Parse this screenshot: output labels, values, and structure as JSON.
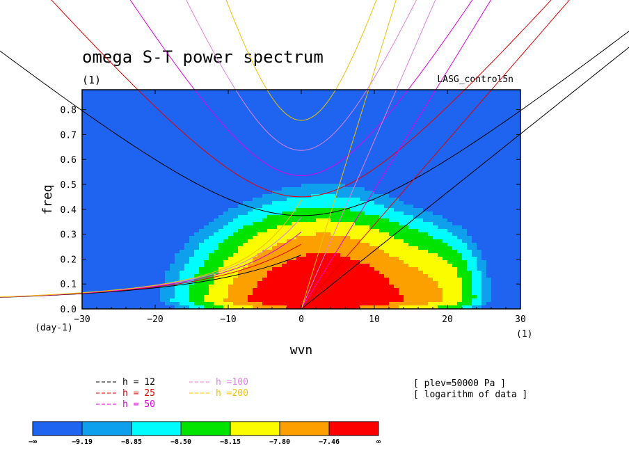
{
  "chart_data": {
    "type": "heatmap",
    "title": "omega S-T power spectrum",
    "subtitle": "(1)",
    "model": "LASG_control5n",
    "xlabel": "wvn",
    "ylabel": "freq",
    "x_unit": "(1)",
    "y_unit": "(day-1)",
    "xlim": [
      -30,
      30
    ],
    "ylim": [
      0,
      0.88
    ],
    "x_ticks": [
      "−30",
      "−20",
      "−10",
      "0",
      "10",
      "20",
      "30"
    ],
    "x_tick_values": [
      -30,
      -20,
      -10,
      0,
      10,
      20,
      30
    ],
    "y_ticks": [
      "0.0",
      "0.1",
      "0.2",
      "0.3",
      "0.4",
      "0.5",
      "0.6",
      "0.7",
      "0.8"
    ],
    "y_tick_values": [
      0,
      0.1,
      0.2,
      0.3,
      0.4,
      0.5,
      0.6,
      0.7,
      0.8
    ],
    "info": [
      "[ plev=50000 Pa ]",
      "[ logarithm of data ]"
    ],
    "colorbar": {
      "colors": [
        "#1e64f0",
        "#0ea0ec",
        "#00fcfc",
        "#00e400",
        "#fcfc00",
        "#fca000",
        "#fc0000"
      ],
      "labels": [
        "−∞",
        "−9.19",
        "−8.85",
        "−8.50",
        "−8.15",
        "−7.80",
        "−7.46",
        "∞"
      ]
    },
    "dispersion_curves": [
      {
        "label": "h = 12",
        "color": "#000000",
        "h": 12
      },
      {
        "label": "h = 25",
        "color": "#e00000",
        "h": 25
      },
      {
        "label": "h = 50",
        "color": "#e000e0",
        "h": 50
      },
      {
        "label": "h =100",
        "color": "#e080e0",
        "h": 100
      },
      {
        "label": "h =200",
        "color": "#f0c000",
        "h": 200
      }
    ]
  }
}
